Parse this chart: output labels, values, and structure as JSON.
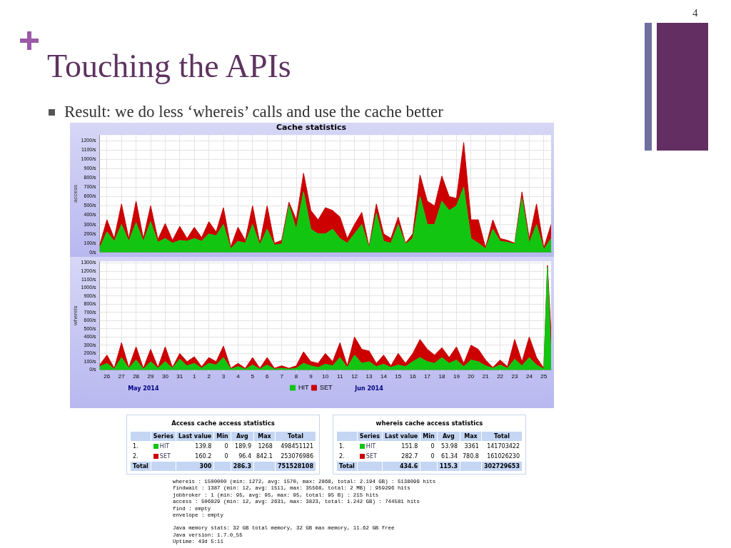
{
  "chart_data": [
    {
      "type": "other",
      "title": "Touching the APIs",
      "subtitle": "Result: we do less ‘whereis’ calls and use the cache better",
      "annotations": [
        "4"
      ]
    },
    {
      "type": "area",
      "stacked": true,
      "title": "Cache statistics",
      "ylabel": "access",
      "grid": true,
      "tick_labels": "y",
      "xlim": [
        "2014-05-26",
        "2014-06-26"
      ],
      "ylim": [
        0,
        1260
      ],
      "yticks": [
        {
          "value": 0,
          "label": "0/s"
        },
        {
          "value": 100,
          "label": "100/s"
        },
        {
          "value": 200,
          "label": "200/s"
        },
        {
          "value": 300,
          "label": "300/s"
        },
        {
          "value": 400,
          "label": "400/s"
        },
        {
          "value": 500,
          "label": "500/s"
        },
        {
          "value": 600,
          "label": "600/s"
        },
        {
          "value": 700,
          "label": "700/s"
        },
        {
          "value": 800,
          "label": "800/s"
        },
        {
          "value": 900,
          "label": "900/s"
        },
        {
          "value": 1000,
          "label": "1000/s"
        },
        {
          "value": 1100,
          "label": "1100/s"
        },
        {
          "value": 1200,
          "label": "1200/s"
        }
      ],
      "xticks": [
        "2014-05-26T12:00",
        "2014-05-27T12:00",
        "2014-05-28T12:00",
        "2014-05-29T12:00",
        "2014-05-30T12:00",
        "2014-05-31T12:00",
        "2014-06-01T12:00",
        "2014-06-02T12:00",
        "2014-06-03T12:00",
        "2014-06-04T12:00",
        "2014-06-05T12:00",
        "2014-06-06T12:00",
        "2014-06-07T12:00",
        "2014-06-08T12:00",
        "2014-06-09T12:00",
        "2014-06-10T12:00",
        "2014-06-11T12:00",
        "2014-06-12T12:00",
        "2014-06-13T12:00",
        "2014-06-14T12:00",
        "2014-06-15T12:00",
        "2014-06-16T12:00",
        "2014-06-17T12:00",
        "2014-06-18T12:00",
        "2014-06-19T12:00",
        "2014-06-20T12:00",
        "2014-06-21T12:00",
        "2014-06-22T12:00",
        "2014-06-23T12:00",
        "2014-06-24T12:00",
        "2014-06-25T12:00"
      ],
      "x": [
        "2014-05-26T00:00",
        "2014-05-26T12:00",
        "2014-05-27T00:00",
        "2014-05-27T12:00",
        "2014-05-28T00:00",
        "2014-05-28T12:00",
        "2014-05-29T00:00",
        "2014-05-29T12:00",
        "2014-05-30T00:00",
        "2014-05-30T12:00",
        "2014-05-31T00:00",
        "2014-05-31T12:00",
        "2014-06-01T00:00",
        "2014-06-01T12:00",
        "2014-06-02T00:00",
        "2014-06-02T12:00",
        "2014-06-03T00:00",
        "2014-06-03T12:00",
        "2014-06-04T00:00",
        "2014-06-04T12:00",
        "2014-06-05T00:00",
        "2014-06-05T12:00",
        "2014-06-06T00:00",
        "2014-06-06T12:00",
        "2014-06-07T00:00",
        "2014-06-07T12:00",
        "2014-06-08T00:00",
        "2014-06-08T12:00",
        "2014-06-09T00:00",
        "2014-06-09T12:00",
        "2014-06-10T00:00",
        "2014-06-10T12:00",
        "2014-06-11T00:00",
        "2014-06-11T12:00",
        "2014-06-12T00:00",
        "2014-06-12T12:00",
        "2014-06-13T00:00",
        "2014-06-13T12:00",
        "2014-06-14T00:00",
        "2014-06-14T12:00",
        "2014-06-15T00:00",
        "2014-06-15T12:00",
        "2014-06-16T00:00",
        "2014-06-16T12:00",
        "2014-06-17T00:00",
        "2014-06-17T12:00",
        "2014-06-18T00:00",
        "2014-06-18T12:00",
        "2014-06-19T00:00",
        "2014-06-19T12:00",
        "2014-06-20T00:00",
        "2014-06-20T12:00",
        "2014-06-21T00:00",
        "2014-06-21T12:00",
        "2014-06-22T00:00",
        "2014-06-22T12:00",
        "2014-06-23T00:00",
        "2014-06-23T12:00",
        "2014-06-24T00:00",
        "2014-06-24T12:00",
        "2014-06-25T00:00",
        "2014-06-25T12:00",
        "2014-06-26T00:00"
      ],
      "series": [
        {
          "color": "#11c511",
          "values": [
            50,
            220,
            120,
            300,
            120,
            320,
            120,
            330,
            110,
            150,
            100,
            130,
            120,
            150,
            120,
            200,
            180,
            300,
            40,
            120,
            100,
            300,
            80,
            250,
            80,
            90,
            500,
            250,
            650,
            250,
            200,
            200,
            250,
            150,
            100,
            200,
            300,
            50,
            420,
            120,
            100,
            300,
            90,
            150,
            600,
            300,
            300,
            550,
            450,
            500,
            700,
            150,
            100,
            40,
            250,
            120,
            110,
            90,
            580,
            100,
            300,
            30,
            150
          ]
        },
        {
          "color": "#cc0000",
          "values": [
            30,
            130,
            30,
            220,
            30,
            230,
            30,
            170,
            30,
            160,
            30,
            150,
            30,
            120,
            40,
            130,
            40,
            180,
            20,
            150,
            30,
            200,
            20,
            250,
            20,
            40,
            40,
            100,
            200,
            200,
            150,
            280,
            200,
            230,
            50,
            100,
            130,
            10,
            100,
            80,
            50,
            80,
            10,
            50,
            230,
            250,
            200,
            270,
            150,
            80,
            480,
            200,
            250,
            10,
            100,
            30,
            20,
            10,
            70,
            50,
            220,
            20,
            150
          ]
        }
      ]
    },
    {
      "type": "area",
      "stacked": true,
      "ylabel": "whereis",
      "grid": true,
      "legend": "bottom",
      "xlim": [
        "2014-05-26",
        "2014-06-26"
      ],
      "ylim": [
        0,
        1320
      ],
      "yticks": [
        {
          "value": 0,
          "label": "0/s"
        },
        {
          "value": 100,
          "label": "100/s"
        },
        {
          "value": 200,
          "label": "200/s"
        },
        {
          "value": 300,
          "label": "300/s"
        },
        {
          "value": 400,
          "label": "400/s"
        },
        {
          "value": 500,
          "label": "500/s"
        },
        {
          "value": 600,
          "label": "600/s"
        },
        {
          "value": 700,
          "label": "700/s"
        },
        {
          "value": 800,
          "label": "800/s"
        },
        {
          "value": 900,
          "label": "900/s"
        },
        {
          "value": 1000,
          "label": "1000/s"
        },
        {
          "value": 1100,
          "label": "1100/s"
        },
        {
          "value": 1200,
          "label": "1200/s"
        },
        {
          "value": 1300,
          "label": "1300/s"
        }
      ],
      "xticks": [
        {
          "value": "2014-05-26T12:00",
          "label": "26"
        },
        {
          "value": "2014-05-27T12:00",
          "label": "27"
        },
        {
          "value": "2014-05-28T12:00",
          "label": "28"
        },
        {
          "value": "2014-05-29T12:00",
          "label": "29"
        },
        {
          "value": "2014-05-30T12:00",
          "label": "30"
        },
        {
          "value": "2014-05-31T12:00",
          "label": "31"
        },
        {
          "value": "2014-06-01T12:00",
          "label": "1"
        },
        {
          "value": "2014-06-02T12:00",
          "label": "2"
        },
        {
          "value": "2014-06-03T12:00",
          "label": "3"
        },
        {
          "value": "2014-06-04T12:00",
          "label": "4"
        },
        {
          "value": "2014-06-05T12:00",
          "label": "5"
        },
        {
          "value": "2014-06-06T12:00",
          "label": "6"
        },
        {
          "value": "2014-06-07T12:00",
          "label": "7"
        },
        {
          "value": "2014-06-08T12:00",
          "label": "8"
        },
        {
          "value": "2014-06-09T12:00",
          "label": "9"
        },
        {
          "value": "2014-06-10T12:00",
          "label": "10"
        },
        {
          "value": "2014-06-11T12:00",
          "label": "11"
        },
        {
          "value": "2014-06-12T12:00",
          "label": "12"
        },
        {
          "value": "2014-06-13T12:00",
          "label": "13"
        },
        {
          "value": "2014-06-14T12:00",
          "label": "14"
        },
        {
          "value": "2014-06-15T12:00",
          "label": "15"
        },
        {
          "value": "2014-06-16T12:00",
          "label": "16"
        },
        {
          "value": "2014-06-17T12:00",
          "label": "17"
        },
        {
          "value": "2014-06-18T12:00",
          "label": "18"
        },
        {
          "value": "2014-06-19T12:00",
          "label": "19"
        },
        {
          "value": "2014-06-20T12:00",
          "label": "20"
        },
        {
          "value": "2014-06-21T12:00",
          "label": "21"
        },
        {
          "value": "2014-06-22T12:00",
          "label": "22"
        },
        {
          "value": "2014-06-23T12:00",
          "label": "23"
        },
        {
          "value": "2014-06-24T12:00",
          "label": "24"
        },
        {
          "value": "2014-06-25T12:00",
          "label": "25"
        }
      ],
      "annotations": [
        "May 2014",
        "Jun 2014"
      ],
      "x": [
        "2014-05-26T00:00",
        "2014-05-26T12:00",
        "2014-05-27T00:00",
        "2014-05-27T12:00",
        "2014-05-28T00:00",
        "2014-05-28T12:00",
        "2014-05-29T00:00",
        "2014-05-29T12:00",
        "2014-05-30T00:00",
        "2014-05-30T12:00",
        "2014-05-31T00:00",
        "2014-05-31T12:00",
        "2014-06-01T00:00",
        "2014-06-01T12:00",
        "2014-06-02T00:00",
        "2014-06-02T12:00",
        "2014-06-03T00:00",
        "2014-06-03T12:00",
        "2014-06-04T00:00",
        "2014-06-04T12:00",
        "2014-06-05T00:00",
        "2014-06-05T12:00",
        "2014-06-06T00:00",
        "2014-06-06T12:00",
        "2014-06-07T00:00",
        "2014-06-07T12:00",
        "2014-06-08T00:00",
        "2014-06-08T12:00",
        "2014-06-09T00:00",
        "2014-06-09T12:00",
        "2014-06-10T00:00",
        "2014-06-10T12:00",
        "2014-06-11T00:00",
        "2014-06-11T12:00",
        "2014-06-12T00:00",
        "2014-06-12T12:00",
        "2014-06-13T00:00",
        "2014-06-13T12:00",
        "2014-06-14T00:00",
        "2014-06-14T12:00",
        "2014-06-15T00:00",
        "2014-06-15T12:00",
        "2014-06-16T00:00",
        "2014-06-16T12:00",
        "2014-06-17T00:00",
        "2014-06-17T12:00",
        "2014-06-18T00:00",
        "2014-06-18T12:00",
        "2014-06-19T00:00",
        "2014-06-19T12:00",
        "2014-06-20T00:00",
        "2014-06-20T12:00",
        "2014-06-21T00:00",
        "2014-06-21T12:00",
        "2014-06-22T00:00",
        "2014-06-22T12:00",
        "2014-06-23T00:00",
        "2014-06-23T12:00",
        "2014-06-24T00:00",
        "2014-06-24T12:00",
        "2014-06-25T00:00",
        "2014-06-25T12:00",
        "2014-06-25T18:00",
        "2014-06-26T00:00"
      ],
      "series": [
        {
          "name": "HIT",
          "color": "#11c511",
          "values": [
            40,
            80,
            10,
            150,
            20,
            120,
            10,
            100,
            20,
            100,
            20,
            130,
            50,
            80,
            20,
            80,
            60,
            150,
            10,
            40,
            10,
            60,
            10,
            60,
            10,
            20,
            10,
            20,
            80,
            50,
            30,
            70,
            50,
            150,
            30,
            180,
            80,
            100,
            40,
            70,
            30,
            60,
            40,
            100,
            150,
            100,
            80,
            150,
            80,
            120,
            40,
            120,
            100,
            50,
            20,
            60,
            20,
            130,
            50,
            150,
            60,
            10,
            1250,
            150
          ]
        },
        {
          "name": "SET",
          "color": "#cc0000",
          "values": [
            20,
            100,
            10,
            180,
            10,
            160,
            10,
            150,
            10,
            180,
            10,
            70,
            50,
            80,
            20,
            70,
            40,
            140,
            10,
            40,
            10,
            90,
            10,
            90,
            10,
            30,
            10,
            30,
            140,
            50,
            50,
            130,
            50,
            180,
            20,
            220,
            170,
            130,
            40,
            110,
            20,
            140,
            40,
            100,
            220,
            150,
            100,
            120,
            70,
            160,
            40,
            180,
            150,
            70,
            10,
            60,
            20,
            240,
            50,
            250,
            90,
            10,
            20,
            280
          ]
        }
      ]
    },
    {
      "type": "other",
      "title": "Access cache access statistics",
      "annotations": [
        null,
        "Series",
        "Last value",
        "Min",
        "Avg",
        "Max",
        "Total",
        "1.",
        "HIT",
        "139.8",
        "0",
        "189.9",
        "1268",
        "498451121",
        "2.",
        "SET",
        "160.2",
        "0",
        "96.4",
        "842.1",
        "253076986",
        "Total",
        null,
        "300",
        null,
        "286.3",
        null,
        "751528108"
      ]
    },
    {
      "type": "other",
      "title": "whereis cache access statistics",
      "annotations": [
        null,
        "Series",
        "Last value",
        "Min",
        "Avg",
        "Max",
        "Total",
        "1.",
        "HIT",
        "151.8",
        "0",
        "53.98",
        "3361",
        "141703422",
        "2.",
        "SET",
        "282.7",
        "0",
        "61.34",
        "780.8",
        "161026230",
        "Total",
        null,
        "434.6",
        null,
        "115.3",
        null,
        "302729653"
      ]
    },
    {
      "type": "other",
      "annotations": [
        "whereis : 1500000 (min: 1272, avg: 1570, max: 2868, total: 2.194 GB) : 5138099 hits",
        "findwait : 1387 (min: 12, avg: 1511, max: 35568, total: 2 MB) : 959296 hits",
        "jobbroker : 1 (min: 95, avg: 95, max: 95, total: 95 B) : 215 hits",
        "access : 506829 (min: 12, avg: 2631, max: 3823, total: 1.242 GB) : 744581 hits",
        "find : empty",
        "envelope : empty",
        "Java memory stats: 32 GB total memory, 32 GB max memory, 11.62 GB free",
        "Java version: 1.7.0_55",
        "Uptime: 43d 5:11"
      ]
    }
  ]
}
